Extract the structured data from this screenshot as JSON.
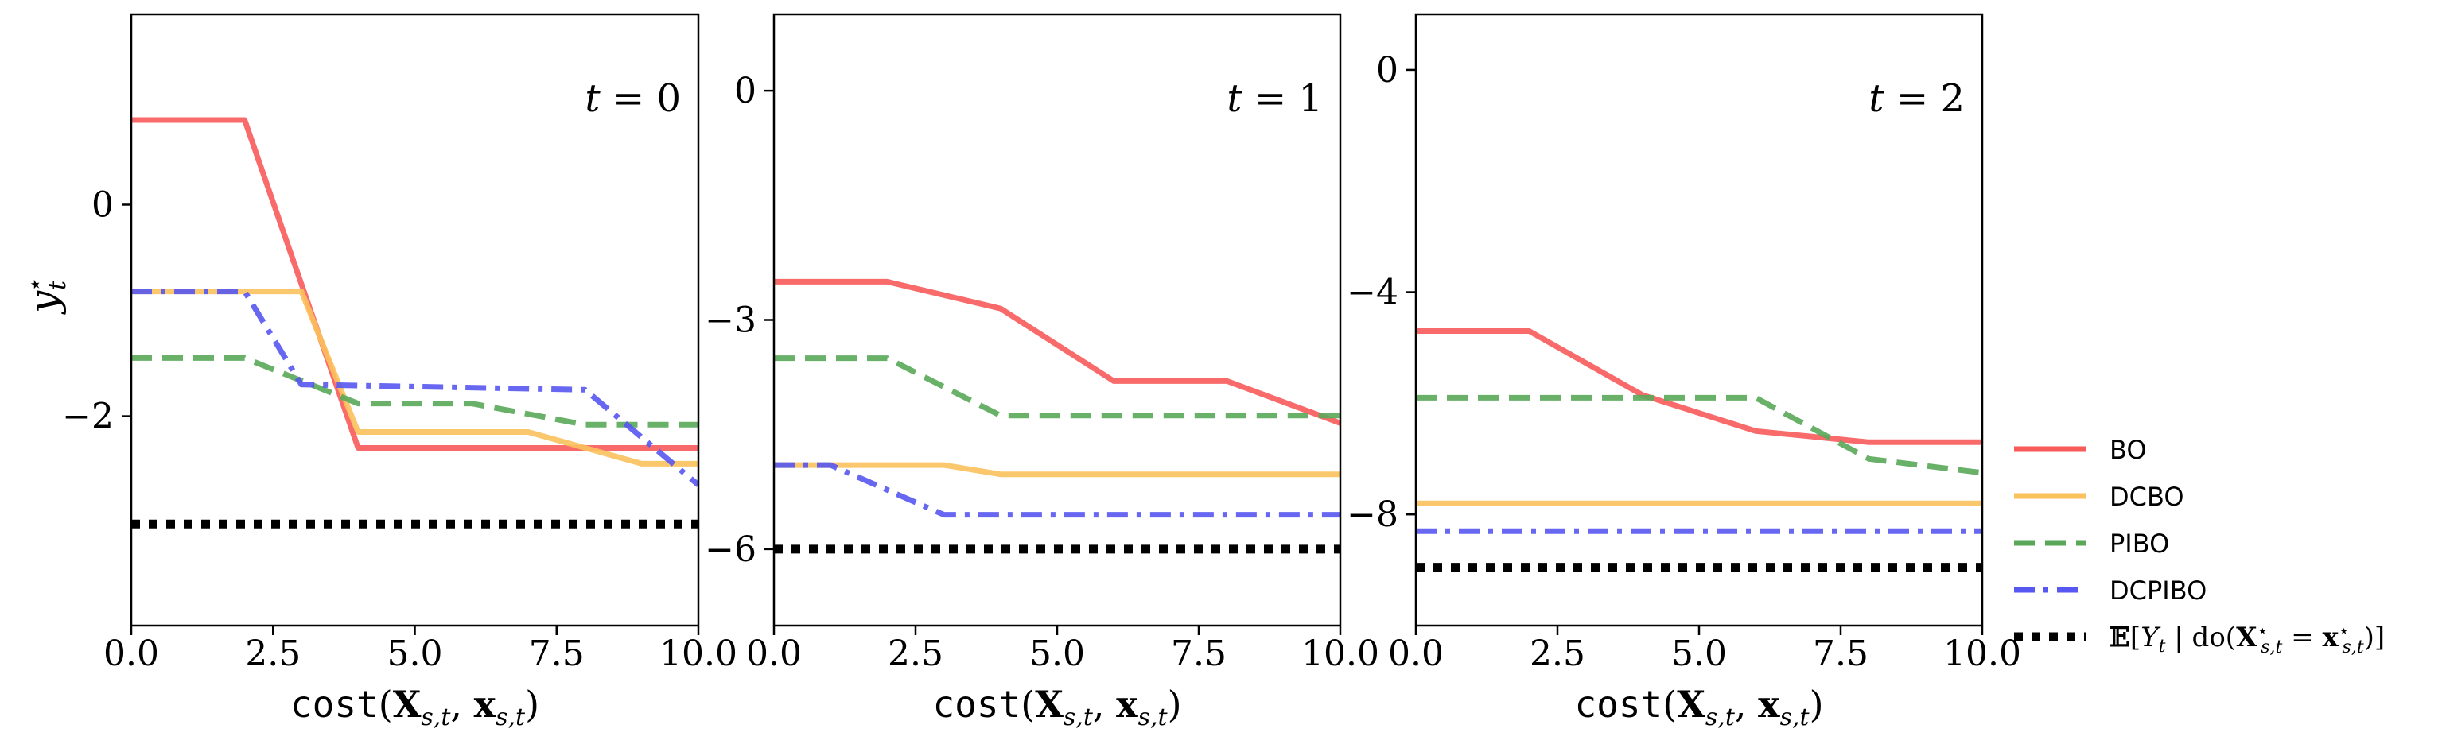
{
  "chart_data": [
    {
      "type": "line",
      "annotation": "t = 0",
      "xlabel": "cost(X_{s,t}, x_{s,t})",
      "ylabel": "y*_t",
      "xlim": [
        0,
        10
      ],
      "ylim": [
        -3.98,
        1.8
      ],
      "xticks": [
        "0.0",
        "2.5",
        "5.0",
        "7.5",
        "10.0"
      ],
      "yticks": [
        {
          "v": 0,
          "label": "0"
        },
        {
          "v": -2,
          "label": "−2"
        }
      ],
      "series": [
        {
          "name": "BO",
          "x": [
            0,
            2,
            4,
            10
          ],
          "y": [
            0.8,
            0.8,
            -2.3,
            -2.3
          ]
        },
        {
          "name": "DCBO",
          "x": [
            0,
            3,
            4,
            7,
            9,
            10
          ],
          "y": [
            -0.82,
            -0.82,
            -2.15,
            -2.15,
            -2.45,
            -2.45
          ]
        },
        {
          "name": "PIBO",
          "x": [
            0,
            2,
            4,
            6,
            8,
            10
          ],
          "y": [
            -1.45,
            -1.45,
            -1.88,
            -1.88,
            -2.08,
            -2.08
          ]
        },
        {
          "name": "DCPIBO",
          "x": [
            0,
            2,
            3,
            8,
            10
          ],
          "y": [
            -0.82,
            -0.82,
            -1.7,
            -1.75,
            -2.65
          ]
        },
        {
          "name": "E[Y_t | do(X*_{s,t} = x*_{s,t})]",
          "x": [
            0,
            10
          ],
          "y": [
            -3.02,
            -3.02
          ]
        }
      ]
    },
    {
      "type": "line",
      "annotation": "t = 1",
      "xlabel": "cost(X_{s,t}, x_{s,t})",
      "ylabel": "",
      "xlim": [
        0,
        10
      ],
      "ylim": [
        -7.0,
        1.0
      ],
      "xticks": [
        "0.0",
        "2.5",
        "5.0",
        "7.5",
        "10.0"
      ],
      "yticks": [
        {
          "v": 0,
          "label": "0"
        },
        {
          "v": -3,
          "label": "−3"
        },
        {
          "v": -6,
          "label": "−6"
        }
      ],
      "series": [
        {
          "name": "BO",
          "x": [
            0,
            2,
            4,
            6,
            8,
            10
          ],
          "y": [
            -2.5,
            -2.5,
            -2.85,
            -3.8,
            -3.8,
            -4.35
          ]
        },
        {
          "name": "DCBO",
          "x": [
            0,
            3,
            4,
            10
          ],
          "y": [
            -4.9,
            -4.9,
            -5.02,
            -5.02
          ]
        },
        {
          "name": "PIBO",
          "x": [
            0,
            2,
            4,
            10
          ],
          "y": [
            -3.5,
            -3.5,
            -4.25,
            -4.25
          ]
        },
        {
          "name": "DCPIBO",
          "x": [
            0,
            1,
            3,
            10
          ],
          "y": [
            -4.9,
            -4.9,
            -5.55,
            -5.55
          ]
        },
        {
          "name": "E[Y_t | do(X*_{s,t} = x*_{s,t})]",
          "x": [
            0,
            10
          ],
          "y": [
            -6.0,
            -6.0
          ]
        }
      ]
    },
    {
      "type": "line",
      "annotation": "t = 2",
      "xlabel": "cost(X_{s,t}, x_{s,t})",
      "ylabel": "",
      "xlim": [
        0,
        10
      ],
      "ylim": [
        -10.0,
        1.0
      ],
      "xticks": [
        "0.0",
        "2.5",
        "5.0",
        "7.5",
        "10.0"
      ],
      "yticks": [
        {
          "v": 0,
          "label": "0"
        },
        {
          "v": -4,
          "label": "−4"
        },
        {
          "v": -8,
          "label": "−8"
        }
      ],
      "series": [
        {
          "name": "BO",
          "x": [
            0,
            2,
            4,
            6,
            8,
            10
          ],
          "y": [
            -4.7,
            -4.7,
            -5.85,
            -6.5,
            -6.7,
            -6.7
          ]
        },
        {
          "name": "DCBO",
          "x": [
            0,
            10
          ],
          "y": [
            -7.8,
            -7.8
          ]
        },
        {
          "name": "PIBO",
          "x": [
            0,
            6,
            8,
            10
          ],
          "y": [
            -5.9,
            -5.9,
            -7.0,
            -7.25
          ]
        },
        {
          "name": "DCPIBO",
          "x": [
            0,
            10
          ],
          "y": [
            -8.3,
            -8.3
          ]
        },
        {
          "name": "E[Y_t | do(X*_{s,t} = x*_{s,t})]",
          "x": [
            0,
            10
          ],
          "y": [
            -8.95,
            -8.95
          ]
        }
      ]
    }
  ],
  "legend": {
    "placement": "right",
    "entries": [
      {
        "label": "BO",
        "color": "#f85a5a",
        "style": "solid"
      },
      {
        "label": "DCBO",
        "color": "#fbc15c",
        "style": "solid"
      },
      {
        "label": "PIBO",
        "color": "#59a859",
        "style": "dashed"
      },
      {
        "label": "DCPIBO",
        "color": "#5757f1",
        "style": "dashdot"
      },
      {
        "label": "E[Y_t | do(X*_{s,t} = x*_{s,t})]",
        "color": "#000000",
        "style": "dotted"
      }
    ]
  }
}
